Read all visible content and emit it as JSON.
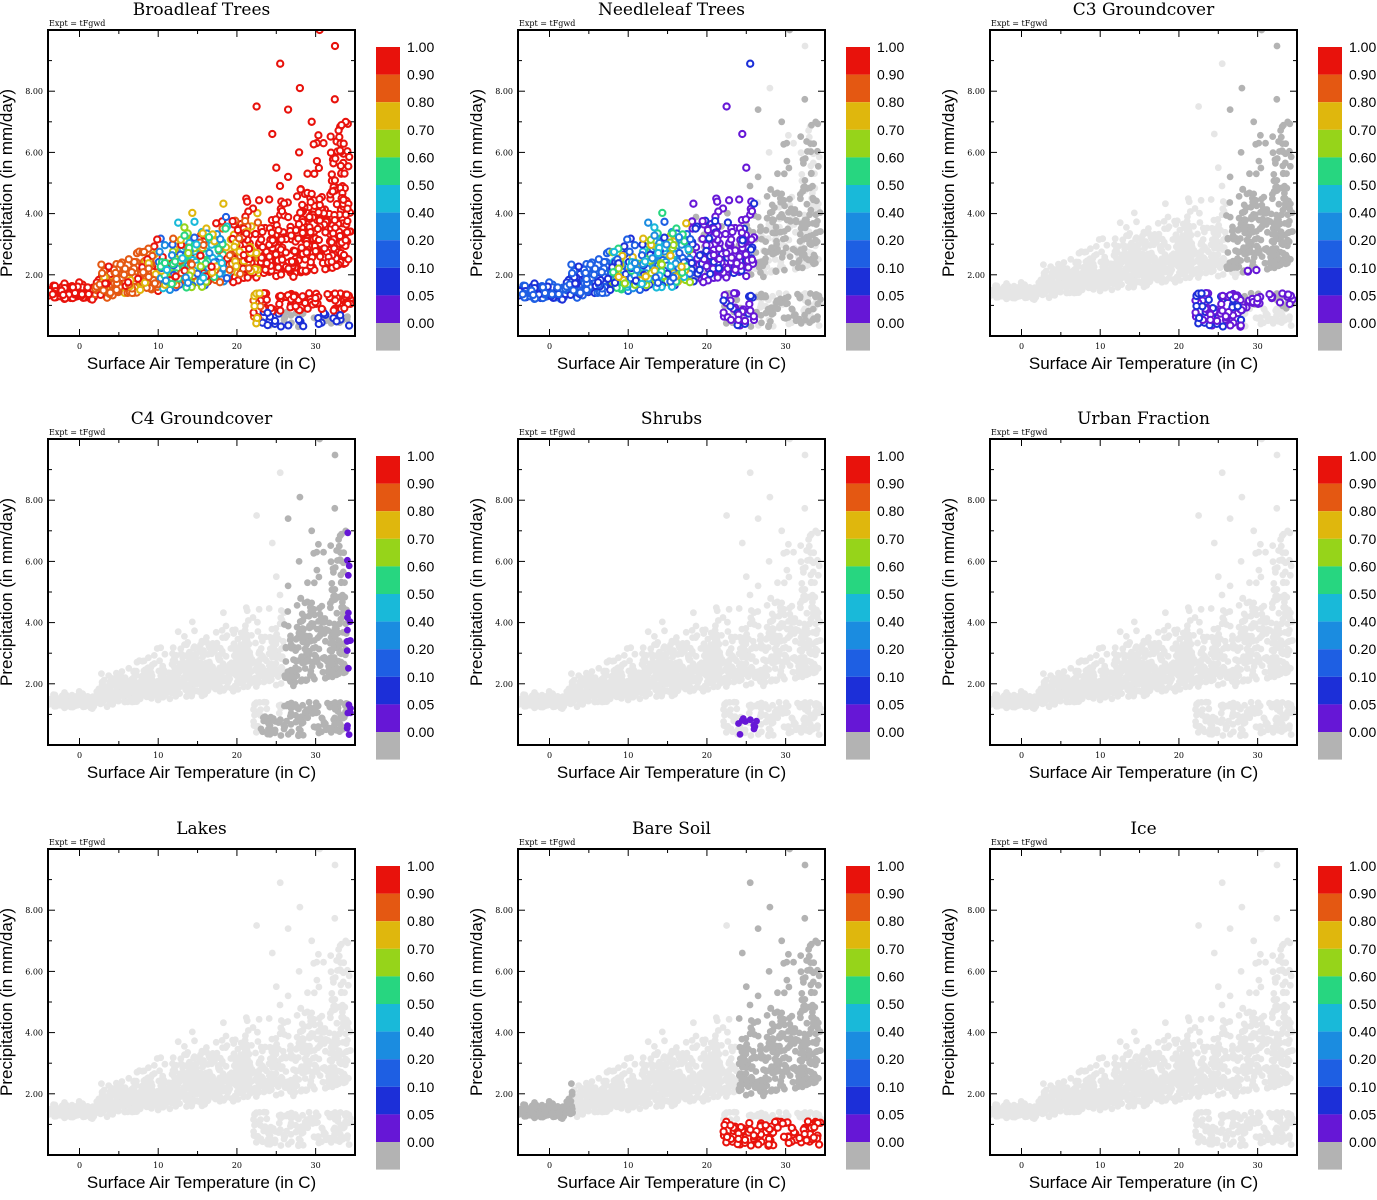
{
  "figure": {
    "expt_label": "Expt = tFgwd",
    "xlabel": "Surface Air Temperature (in C)",
    "ylabel": "Precipitation (in mm/day)"
  },
  "chart_data": {
    "type": "scatter",
    "xlim": [
      -4,
      35
    ],
    "ylim": [
      0,
      10
    ],
    "xticks": [
      0,
      10,
      20,
      30
    ],
    "yticks": [
      2,
      4,
      6,
      8
    ],
    "ytick_labels": [
      "2.00",
      "4.00",
      "6.00",
      "8.00"
    ],
    "colorbar": {
      "labels": [
        "1.00",
        "0.90",
        "0.80",
        "0.70",
        "0.60",
        "0.50",
        "0.40",
        "0.20",
        "0.10",
        "0.05",
        "0.00"
      ],
      "colors": [
        "#e8120c",
        "#e45812",
        "#dfb70d",
        "#96d41a",
        "#27d680",
        "#19b9d9",
        "#1b8ce0",
        "#1e5fe3",
        "#1c2fd8",
        "#6617d6",
        "#b3b3b3"
      ]
    },
    "panels": [
      {
        "title": "Broadleaf Trees",
        "mode": "broadleaf"
      },
      {
        "title": "Needleleaf Trees",
        "mode": "needleleaf"
      },
      {
        "title": "C3 Groundcover",
        "mode": "c3"
      },
      {
        "title": "C4 Groundcover",
        "mode": "c4"
      },
      {
        "title": "Shrubs",
        "mode": "shrubs"
      },
      {
        "title": "Urban Fraction",
        "mode": "none"
      },
      {
        "title": "Lakes",
        "mode": "none"
      },
      {
        "title": "Bare Soil",
        "mode": "baresoil"
      },
      {
        "title": "Ice",
        "mode": "none"
      }
    ]
  }
}
